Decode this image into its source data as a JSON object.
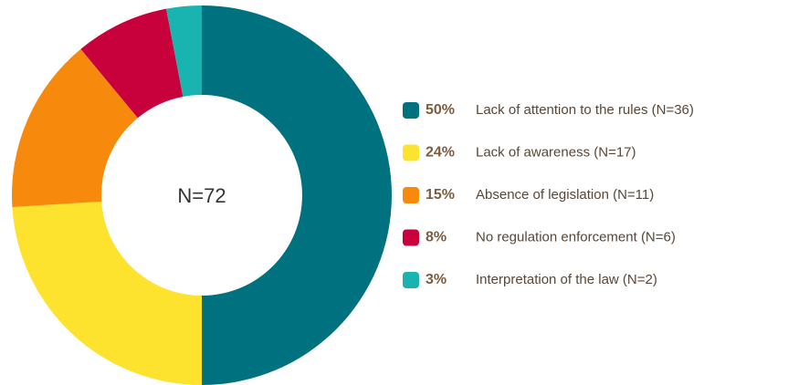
{
  "chart_data": {
    "type": "donut",
    "center_label": "N=72",
    "categories": [
      "Lack of attention to the rules (N=36)",
      "Lack of awareness (N=17)",
      "Absence of legislation (N=11)",
      "No regulation enforcement (N=6)",
      "Interpretation of the law (N=2)"
    ],
    "values": [
      50,
      24,
      15,
      8,
      3
    ],
    "value_labels": [
      "50%",
      "24%",
      "15%",
      "8%",
      "3%"
    ],
    "colors": [
      "#00717f",
      "#fde22e",
      "#f78a0c",
      "#c8003c",
      "#19b4b0"
    ],
    "legend": "right"
  }
}
